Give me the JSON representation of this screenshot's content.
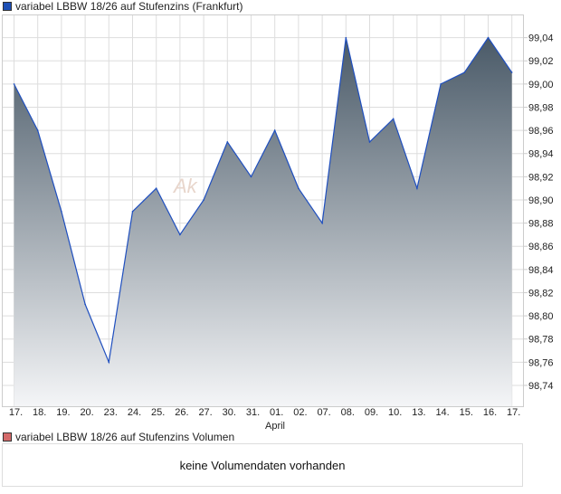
{
  "chart_data": {
    "type": "area",
    "title": "variabel LBBW 18/26 auf Stufenzins (Frankfurt)",
    "categories": [
      "17.",
      "18.",
      "19.",
      "20.",
      "23.",
      "24.",
      "25.",
      "26.",
      "27.",
      "30.",
      "31.",
      "01.",
      "02.",
      "07.",
      "08.",
      "09.",
      "10.",
      "13.",
      "14.",
      "15.",
      "16.",
      "17."
    ],
    "month_label": "April",
    "values": [
      99.0,
      98.96,
      98.89,
      98.81,
      98.76,
      98.89,
      98.91,
      98.87,
      98.9,
      98.95,
      98.92,
      98.96,
      98.91,
      98.88,
      99.04,
      98.95,
      98.97,
      98.91,
      99.0,
      99.01,
      99.04,
      99.01
    ],
    "yticks": [
      "98,74",
      "98,76",
      "98,78",
      "98,80",
      "98,82",
      "98,84",
      "98,86",
      "98,88",
      "98,90",
      "98,92",
      "98,94",
      "98,96",
      "98,98",
      "99,00",
      "99,02",
      "99,04"
    ],
    "ylim": [
      98.722,
      99.06
    ],
    "grid": true,
    "line_color": "#1f4fbf",
    "fill_top": "#4a5a68",
    "fill_bottom": "#f4f5f7",
    "legend_color": "#1d4fb5",
    "watermark": "Ak"
  },
  "volume": {
    "legend": "variabel LBBW 18/26 auf Stufenzins Volumen",
    "legend_color": "#d46a6a",
    "empty_text": "keine Volumendaten vorhanden"
  }
}
